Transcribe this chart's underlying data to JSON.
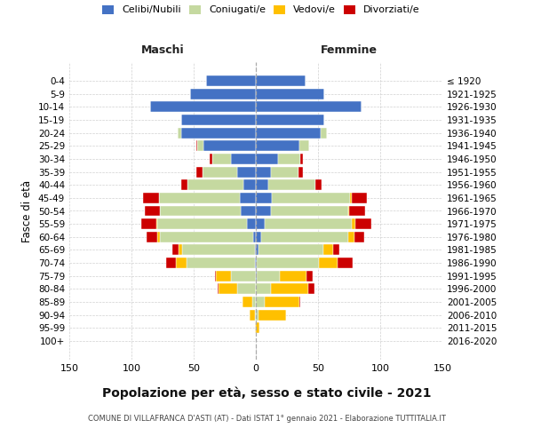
{
  "age_groups": [
    "0-4",
    "5-9",
    "10-14",
    "15-19",
    "20-24",
    "25-29",
    "30-34",
    "35-39",
    "40-44",
    "45-49",
    "50-54",
    "55-59",
    "60-64",
    "65-69",
    "70-74",
    "75-79",
    "80-84",
    "85-89",
    "90-94",
    "95-99",
    "100+"
  ],
  "birth_years": [
    "2016-2020",
    "2011-2015",
    "2006-2010",
    "2001-2005",
    "1996-2000",
    "1991-1995",
    "1986-1990",
    "1981-1985",
    "1976-1980",
    "1971-1975",
    "1966-1970",
    "1961-1965",
    "1956-1960",
    "1951-1955",
    "1946-1950",
    "1941-1945",
    "1936-1940",
    "1931-1935",
    "1926-1930",
    "1921-1925",
    "≤ 1920"
  ],
  "males_celibi": [
    40,
    53,
    85,
    60,
    60,
    42,
    20,
    15,
    10,
    13,
    12,
    7,
    2,
    1,
    1,
    0,
    0,
    0,
    0,
    0,
    0
  ],
  "males_coniugati": [
    0,
    0,
    0,
    0,
    3,
    5,
    15,
    28,
    45,
    65,
    65,
    72,
    75,
    58,
    55,
    20,
    15,
    3,
    1,
    0,
    0
  ],
  "males_vedovi": [
    0,
    0,
    0,
    0,
    0,
    0,
    0,
    0,
    0,
    0,
    0,
    1,
    2,
    3,
    8,
    12,
    15,
    8,
    4,
    1,
    0
  ],
  "males_divorziati": [
    0,
    0,
    0,
    0,
    0,
    1,
    2,
    5,
    5,
    13,
    12,
    12,
    9,
    5,
    8,
    1,
    1,
    0,
    0,
    0,
    0
  ],
  "females_nubili": [
    40,
    55,
    85,
    55,
    52,
    35,
    18,
    12,
    10,
    13,
    12,
    7,
    4,
    2,
    1,
    1,
    0,
    0,
    0,
    0,
    0
  ],
  "females_coniugate": [
    0,
    0,
    0,
    0,
    5,
    8,
    18,
    22,
    38,
    63,
    62,
    70,
    70,
    52,
    50,
    18,
    12,
    7,
    2,
    0,
    0
  ],
  "females_vedove": [
    0,
    0,
    0,
    0,
    0,
    0,
    0,
    0,
    0,
    1,
    1,
    3,
    5,
    8,
    15,
    22,
    30,
    28,
    22,
    3,
    0
  ],
  "females_divorziate": [
    0,
    0,
    0,
    0,
    0,
    0,
    2,
    4,
    5,
    12,
    13,
    13,
    8,
    5,
    12,
    5,
    5,
    1,
    0,
    0,
    0
  ],
  "color_celibi": "#4472c4",
  "color_coniugati": "#c5d9a0",
  "color_vedovi": "#ffc000",
  "color_divorziati": "#cc0000",
  "title": "Popolazione per età, sesso e stato civile - 2021",
  "subtitle": "COMUNE DI VILLAFRANCA D'ASTI (AT) - Dati ISTAT 1° gennaio 2021 - Elaborazione TUTTITALIA.IT",
  "legend_labels": [
    "Celibi/Nubili",
    "Coniugati/e",
    "Vedovi/e",
    "Divorziati/e"
  ],
  "label_maschi": "Maschi",
  "label_femmine": "Femmine",
  "label_fasce": "Fasce di età",
  "xlim": 150,
  "background_color": "#ffffff"
}
